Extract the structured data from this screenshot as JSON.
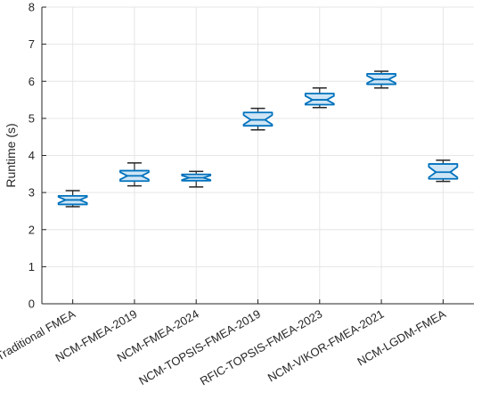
{
  "chart_data": {
    "type": "boxplot",
    "ylabel": "Runtime (s)",
    "xlabel": "",
    "title": "",
    "ylim": [
      0,
      8
    ],
    "yticks": [
      0,
      1,
      2,
      3,
      4,
      5,
      6,
      7,
      8
    ],
    "grid": true,
    "categories": [
      "Traditional FMEA",
      "NCM-FMEA-2019",
      "NCM-FMEA-2024",
      "NCM-TOPSIS-FMEA-2019",
      "RFIC-TOPSIS-FMEA-2023",
      "NCM-VIKOR-FMEA-2021",
      "NCM-LGDM-FMEA"
    ],
    "boxes": [
      {
        "min": 2.62,
        "q1": 2.68,
        "median": 2.8,
        "q3": 2.91,
        "max": 3.05
      },
      {
        "min": 3.18,
        "q1": 3.31,
        "median": 3.45,
        "q3": 3.59,
        "max": 3.8
      },
      {
        "min": 3.15,
        "q1": 3.32,
        "median": 3.4,
        "q3": 3.49,
        "max": 3.57
      },
      {
        "min": 4.69,
        "q1": 4.8,
        "median": 4.96,
        "q3": 5.16,
        "max": 5.27
      },
      {
        "min": 5.29,
        "q1": 5.37,
        "median": 5.5,
        "q3": 5.67,
        "max": 5.82
      },
      {
        "min": 5.82,
        "q1": 5.92,
        "median": 6.05,
        "q3": 6.2,
        "max": 6.27
      },
      {
        "min": 3.3,
        "q1": 3.37,
        "median": 3.55,
        "q3": 3.77,
        "max": 3.87
      }
    ],
    "colors": {
      "box_fill": "#cfe5f5",
      "box_edge": "#0072bd",
      "whisker": "#262626",
      "grid": "#e6e6e6",
      "axis": "#262626"
    }
  }
}
